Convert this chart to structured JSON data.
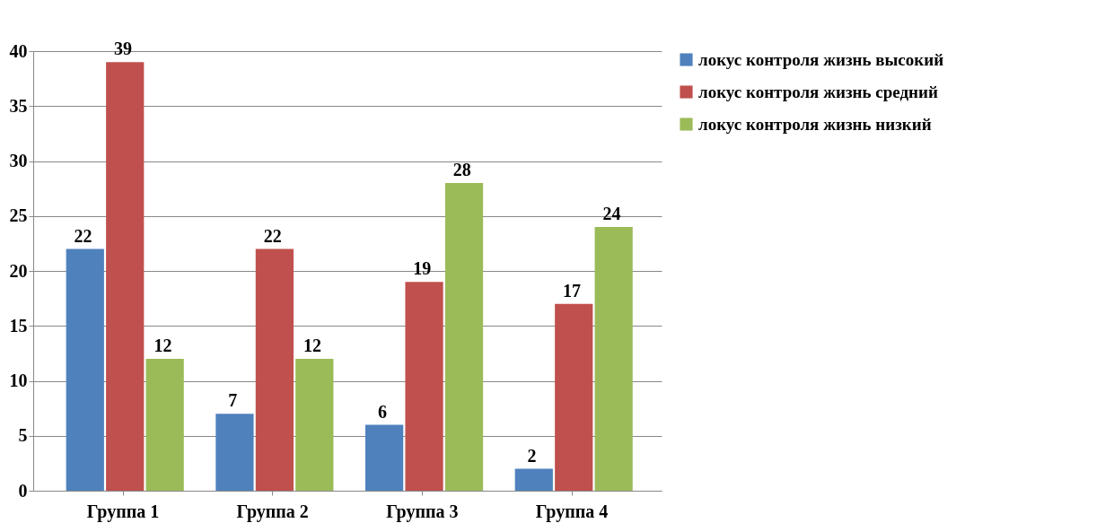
{
  "chart_data": {
    "type": "bar",
    "categories": [
      "Группа 1",
      "Группа 2",
      "Группа 3",
      "Группа 4"
    ],
    "series": [
      {
        "name": "локус контроля жизнь высокий",
        "color": "#4f81bd",
        "values": [
          22,
          7,
          6,
          2
        ]
      },
      {
        "name": "локус контроля жизнь средний",
        "color": "#c0504d",
        "values": [
          39,
          22,
          19,
          17
        ]
      },
      {
        "name": "локус контроля жизнь низкий",
        "color": "#9bbb59",
        "values": [
          12,
          12,
          28,
          24
        ]
      }
    ],
    "ylim": [
      0,
      40
    ],
    "yticks": [
      0,
      5,
      10,
      15,
      20,
      25,
      30,
      35,
      40
    ],
    "grid": "y",
    "legend": "right",
    "data_labels": true
  }
}
